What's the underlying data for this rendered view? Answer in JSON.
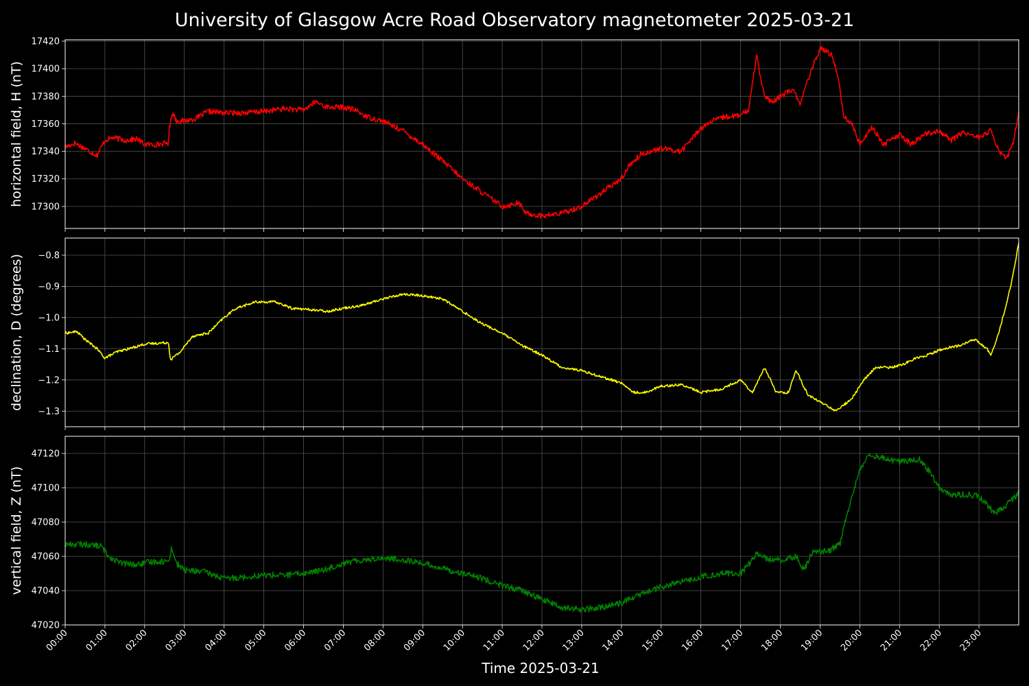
{
  "chart_data": {
    "type": "line",
    "title": "University of Glasgow Acre Road Observatory magnetometer 2025-03-21",
    "xlabel": "Time 2025-03-21",
    "x_unit": "hours",
    "xlim": [
      0,
      24
    ],
    "x_tick_labels": [
      "00:00",
      "01:00",
      "02:00",
      "03:00",
      "04:00",
      "05:00",
      "06:00",
      "07:00",
      "08:00",
      "09:00",
      "10:00",
      "11:00",
      "12:00",
      "13:00",
      "14:00",
      "15:00",
      "16:00",
      "17:00",
      "18:00",
      "19:00",
      "20:00",
      "21:00",
      "22:00",
      "23:00"
    ],
    "grid": true,
    "background": "#000000",
    "panels": [
      {
        "id": "H",
        "ylabel": "horizontal field, H (nT)",
        "color": "#ff0000",
        "ylim": [
          17284,
          17421
        ],
        "yticks": [
          17300,
          17320,
          17340,
          17360,
          17380,
          17400,
          17420
        ],
        "ytick_labels": [
          "17300",
          "17320",
          "17340",
          "17360",
          "17380",
          "17400",
          "17420"
        ],
        "noise": 2.0,
        "points": [
          [
            0,
            17343
          ],
          [
            0.25,
            17346
          ],
          [
            0.5,
            17342
          ],
          [
            0.8,
            17337
          ],
          [
            1.0,
            17348
          ],
          [
            1.2,
            17350
          ],
          [
            1.5,
            17348
          ],
          [
            1.8,
            17349
          ],
          [
            2.0,
            17345
          ],
          [
            2.3,
            17345
          ],
          [
            2.6,
            17346
          ],
          [
            2.62,
            17356
          ],
          [
            2.7,
            17369
          ],
          [
            2.8,
            17362
          ],
          [
            3.0,
            17362
          ],
          [
            3.3,
            17364
          ],
          [
            3.6,
            17369
          ],
          [
            4.0,
            17368
          ],
          [
            4.5,
            17368
          ],
          [
            5.0,
            17369
          ],
          [
            5.5,
            17371
          ],
          [
            6.0,
            17370
          ],
          [
            6.3,
            17376
          ],
          [
            6.6,
            17372
          ],
          [
            7.0,
            17372
          ],
          [
            7.3,
            17370
          ],
          [
            7.6,
            17365
          ],
          [
            8.0,
            17362
          ],
          [
            8.5,
            17355
          ],
          [
            9.0,
            17345
          ],
          [
            9.5,
            17333
          ],
          [
            10.0,
            17320
          ],
          [
            10.5,
            17310
          ],
          [
            11.0,
            17300
          ],
          [
            11.2,
            17301
          ],
          [
            11.4,
            17303
          ],
          [
            11.6,
            17295
          ],
          [
            12.0,
            17293
          ],
          [
            12.5,
            17295
          ],
          [
            13.0,
            17300
          ],
          [
            13.5,
            17310
          ],
          [
            14.0,
            17320
          ],
          [
            14.2,
            17330
          ],
          [
            14.5,
            17338
          ],
          [
            15.0,
            17342
          ],
          [
            15.5,
            17340
          ],
          [
            16.0,
            17357
          ],
          [
            16.3,
            17362
          ],
          [
            16.6,
            17365
          ],
          [
            17.0,
            17366
          ],
          [
            17.2,
            17370
          ],
          [
            17.4,
            17410
          ],
          [
            17.6,
            17380
          ],
          [
            17.8,
            17375
          ],
          [
            18.0,
            17380
          ],
          [
            18.3,
            17385
          ],
          [
            18.5,
            17375
          ],
          [
            18.8,
            17400
          ],
          [
            19.0,
            17415
          ],
          [
            19.3,
            17410
          ],
          [
            19.45,
            17395
          ],
          [
            19.6,
            17365
          ],
          [
            19.8,
            17360
          ],
          [
            20.0,
            17345
          ],
          [
            20.3,
            17358
          ],
          [
            20.6,
            17345
          ],
          [
            21.0,
            17352
          ],
          [
            21.3,
            17345
          ],
          [
            21.6,
            17352
          ],
          [
            22.0,
            17355
          ],
          [
            22.3,
            17348
          ],
          [
            22.6,
            17354
          ],
          [
            23.0,
            17350
          ],
          [
            23.3,
            17355
          ],
          [
            23.5,
            17340
          ],
          [
            23.7,
            17335
          ],
          [
            23.85,
            17345
          ],
          [
            24.0,
            17368
          ]
        ]
      },
      {
        "id": "D",
        "ylabel": "declination, D (degrees)",
        "color": "#ffff00",
        "ylim": [
          -1.35,
          -0.745
        ],
        "yticks": [
          -1.3,
          -1.2,
          -1.1,
          -1.0,
          -0.9,
          -0.8
        ],
        "ytick_labels": [
          "−1.3",
          "−1.2",
          "−1.1",
          "−1.0",
          "−0.9",
          "−0.8"
        ],
        "noise": 0.004,
        "points": [
          [
            0,
            -1.05
          ],
          [
            0.3,
            -1.045
          ],
          [
            0.5,
            -1.07
          ],
          [
            0.8,
            -1.1
          ],
          [
            1.0,
            -1.13
          ],
          [
            1.3,
            -1.11
          ],
          [
            1.6,
            -1.1
          ],
          [
            2.0,
            -1.085
          ],
          [
            2.6,
            -1.08
          ],
          [
            2.65,
            -1.135
          ],
          [
            2.9,
            -1.11
          ],
          [
            3.2,
            -1.06
          ],
          [
            3.6,
            -1.05
          ],
          [
            4.0,
            -1.0
          ],
          [
            4.3,
            -0.97
          ],
          [
            4.8,
            -0.95
          ],
          [
            5.3,
            -0.95
          ],
          [
            5.7,
            -0.97
          ],
          [
            6.2,
            -0.975
          ],
          [
            6.6,
            -0.98
          ],
          [
            7.0,
            -0.97
          ],
          [
            7.5,
            -0.96
          ],
          [
            8.0,
            -0.94
          ],
          [
            8.5,
            -0.925
          ],
          [
            9.0,
            -0.93
          ],
          [
            9.5,
            -0.94
          ],
          [
            10.0,
            -0.98
          ],
          [
            10.5,
            -1.02
          ],
          [
            11.0,
            -1.05
          ],
          [
            11.5,
            -1.09
          ],
          [
            12.0,
            -1.12
          ],
          [
            12.5,
            -1.16
          ],
          [
            13.0,
            -1.17
          ],
          [
            13.5,
            -1.19
          ],
          [
            14.0,
            -1.21
          ],
          [
            14.3,
            -1.24
          ],
          [
            14.6,
            -1.24
          ],
          [
            15.0,
            -1.22
          ],
          [
            15.5,
            -1.215
          ],
          [
            16.0,
            -1.24
          ],
          [
            16.5,
            -1.23
          ],
          [
            17.0,
            -1.2
          ],
          [
            17.3,
            -1.24
          ],
          [
            17.6,
            -1.16
          ],
          [
            17.9,
            -1.24
          ],
          [
            18.2,
            -1.24
          ],
          [
            18.4,
            -1.17
          ],
          [
            18.7,
            -1.25
          ],
          [
            19.0,
            -1.27
          ],
          [
            19.4,
            -1.3
          ],
          [
            19.6,
            -1.28
          ],
          [
            19.8,
            -1.26
          ],
          [
            20.1,
            -1.2
          ],
          [
            20.4,
            -1.16
          ],
          [
            20.8,
            -1.16
          ],
          [
            21.1,
            -1.15
          ],
          [
            21.4,
            -1.13
          ],
          [
            21.7,
            -1.12
          ],
          [
            22.1,
            -1.1
          ],
          [
            22.5,
            -1.09
          ],
          [
            22.9,
            -1.07
          ],
          [
            23.2,
            -1.1
          ],
          [
            23.3,
            -1.12
          ],
          [
            23.5,
            -1.05
          ],
          [
            23.7,
            -0.95
          ],
          [
            23.85,
            -0.87
          ],
          [
            24.0,
            -0.76
          ]
        ]
      },
      {
        "id": "Z",
        "ylabel": "vertical field, Z (nT)",
        "color": "#008000",
        "ylim": [
          47020,
          47130
        ],
        "yticks": [
          47020,
          47040,
          47060,
          47080,
          47100,
          47120
        ],
        "ytick_labels": [
          "47020",
          "47040",
          "47060",
          "47080",
          "47100",
          "47120"
        ],
        "noise": 1.8,
        "points": [
          [
            0,
            47067
          ],
          [
            0.5,
            47067
          ],
          [
            0.9,
            47066
          ],
          [
            1.1,
            47060
          ],
          [
            1.4,
            47056
          ],
          [
            1.8,
            47055
          ],
          [
            2.2,
            47057
          ],
          [
            2.6,
            47057
          ],
          [
            2.68,
            47065
          ],
          [
            2.8,
            47056
          ],
          [
            3.0,
            47052
          ],
          [
            3.5,
            47051
          ],
          [
            4.0,
            47047
          ],
          [
            4.5,
            47048
          ],
          [
            5.0,
            47049
          ],
          [
            5.5,
            47049
          ],
          [
            6.0,
            47050
          ],
          [
            6.5,
            47052
          ],
          [
            7.0,
            47056
          ],
          [
            7.5,
            47058
          ],
          [
            8.0,
            47059
          ],
          [
            8.5,
            47058
          ],
          [
            9.0,
            47056
          ],
          [
            9.5,
            47053
          ],
          [
            10.0,
            47050
          ],
          [
            10.5,
            47047
          ],
          [
            11.0,
            47043
          ],
          [
            11.5,
            47040
          ],
          [
            12.0,
            47035
          ],
          [
            12.5,
            47030
          ],
          [
            13.0,
            47029
          ],
          [
            13.5,
            47030
          ],
          [
            14.0,
            47033
          ],
          [
            14.5,
            47038
          ],
          [
            15.0,
            47042
          ],
          [
            15.5,
            47045
          ],
          [
            16.0,
            47048
          ],
          [
            16.5,
            47050
          ],
          [
            17.0,
            47050
          ],
          [
            17.2,
            47055
          ],
          [
            17.4,
            47062
          ],
          [
            17.7,
            47058
          ],
          [
            18.0,
            47058
          ],
          [
            18.4,
            47060
          ],
          [
            18.6,
            47052
          ],
          [
            18.8,
            47062
          ],
          [
            19.2,
            47063
          ],
          [
            19.5,
            47067
          ],
          [
            19.6,
            47078
          ],
          [
            19.8,
            47095
          ],
          [
            20.0,
            47110
          ],
          [
            20.2,
            47120
          ],
          [
            20.5,
            47118
          ],
          [
            21.0,
            47115
          ],
          [
            21.5,
            47117
          ],
          [
            21.8,
            47108
          ],
          [
            22.0,
            47100
          ],
          [
            22.3,
            47096
          ],
          [
            22.7,
            47096
          ],
          [
            23.0,
            47095
          ],
          [
            23.2,
            47090
          ],
          [
            23.4,
            47085
          ],
          [
            23.7,
            47090
          ],
          [
            24.0,
            47097
          ]
        ]
      }
    ]
  }
}
